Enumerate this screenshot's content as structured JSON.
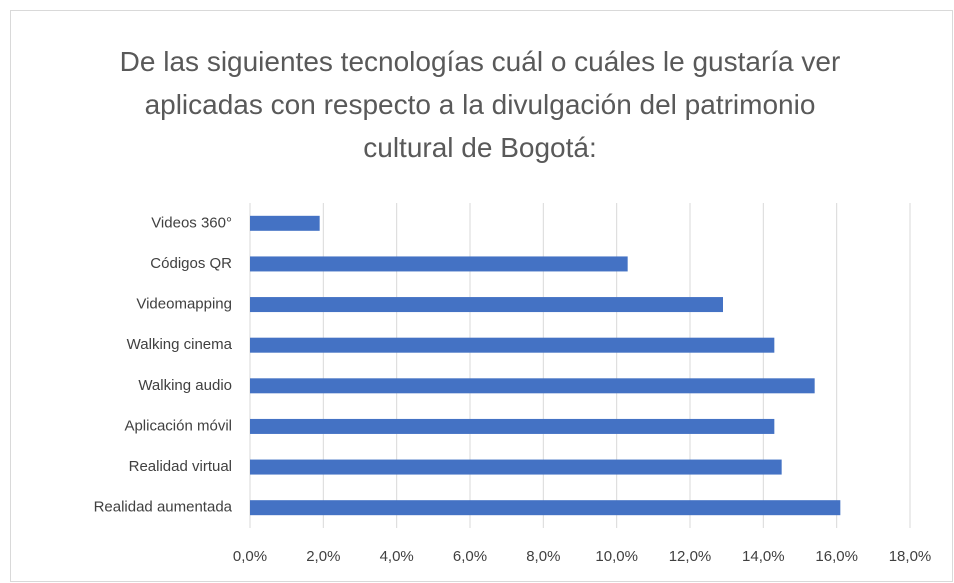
{
  "chart_data": {
    "type": "barh",
    "title": "De las siguientes tecnologías cuál o cuáles le gustaría ver aplicadas con respecto a la divulgación del patrimonio cultural de Bogotá:",
    "categories": [
      "Videos 360°",
      "Códigos QR",
      "Videomapping",
      "Walking cinema",
      "Walking audio",
      "Aplicación móvil",
      "Realidad virtual",
      "Realidad aumentada"
    ],
    "values": [
      1.9,
      10.3,
      12.9,
      14.3,
      15.4,
      14.3,
      14.5,
      16.1
    ],
    "color": "#4472c4",
    "xlim": [
      0,
      18
    ],
    "xticks": [
      {
        "value": 0,
        "label": "0,0%"
      },
      {
        "value": 2,
        "label": "2,0%"
      },
      {
        "value": 4,
        "label": "4,0%"
      },
      {
        "value": 6,
        "label": "6,0%"
      },
      {
        "value": 8,
        "label": "8,0%"
      },
      {
        "value": 10,
        "label": "10,0%"
      },
      {
        "value": 12,
        "label": "12,0%"
      },
      {
        "value": 14,
        "label": "14,0%"
      },
      {
        "value": 16,
        "label": "16,0%"
      },
      {
        "value": 18,
        "label": "18,0%"
      }
    ],
    "grid": true
  }
}
